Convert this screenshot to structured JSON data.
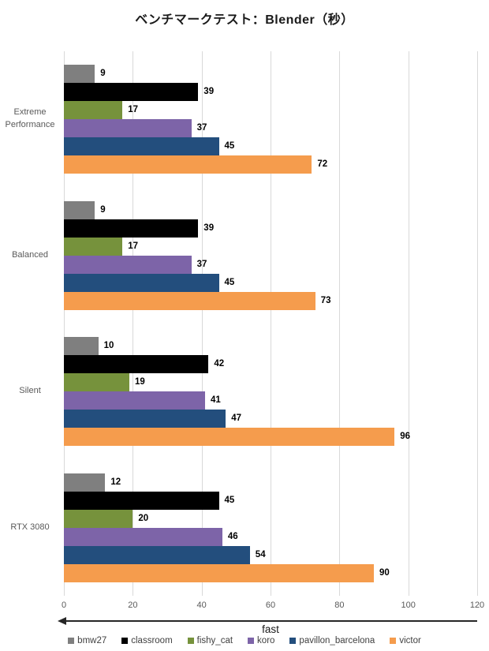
{
  "title": "ベンチマークテスト：Blender（秒）",
  "chart_data": {
    "type": "bar",
    "orientation": "horizontal",
    "title": "ベンチマークテスト：Blender（秒）",
    "categories": [
      "Extreme Performance",
      "Balanced",
      "Silent",
      "RTX 3080"
    ],
    "series": [
      {
        "name": "bmw27",
        "color": "#7F7F7F",
        "values": [
          9,
          9,
          10,
          12
        ]
      },
      {
        "name": "classroom",
        "color": "#000000",
        "values": [
          39,
          39,
          42,
          45
        ]
      },
      {
        "name": "fishy_cat",
        "color": "#76923C",
        "values": [
          17,
          17,
          19,
          20
        ]
      },
      {
        "name": "koro",
        "color": "#7D64A8",
        "values": [
          37,
          37,
          41,
          46
        ]
      },
      {
        "name": "pavillon_barcelona",
        "color": "#234E7D",
        "values": [
          45,
          45,
          47,
          54
        ]
      },
      {
        "name": "victor",
        "color": "#F59C4D",
        "values": [
          72,
          73,
          96,
          90
        ]
      }
    ],
    "x_ticks": [
      "0",
      "20",
      "40",
      "60",
      "80",
      "100",
      "120"
    ],
    "xlim": [
      0,
      120
    ],
    "xlabel": "fast",
    "grid": true,
    "gridline_color": "#D9D9D9",
    "value_labels": true,
    "legend_position": "bottom",
    "x_axis_arrow_direction": "left"
  },
  "colors": {
    "background": "#FFFFFF",
    "title_text": "#1A1A1A",
    "axis_text": "#595959",
    "value_label_text": "#000000",
    "legend_text": "#404040",
    "arrow": "#262626"
  }
}
